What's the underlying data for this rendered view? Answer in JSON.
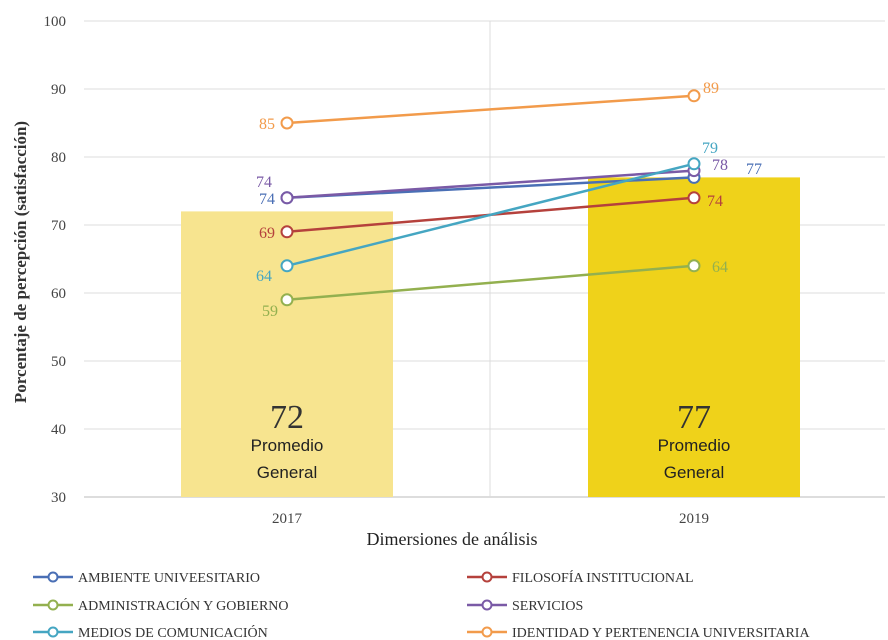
{
  "chart_data": {
    "type": "bar+line",
    "title": "",
    "xlabel": "Dimersiones de análisis",
    "ylabel": "Porcentaje de percepción (satisfacción)",
    "ylim": [
      30,
      100
    ],
    "yticks": [
      "30",
      "40",
      "50",
      "60",
      "70",
      "80",
      "90",
      "100"
    ],
    "categories": [
      "2017",
      "2019"
    ],
    "grid": true,
    "legend_position": "bottom",
    "bars": [
      {
        "category": "2017",
        "value": 72,
        "label": "72",
        "sublabel_1": "Promedio",
        "sublabel_2": "General",
        "color": "#f7e48f"
      },
      {
        "category": "2019",
        "value": 77,
        "label": "77",
        "sublabel_1": "Promedio",
        "sublabel_2": "General",
        "color": "#efd21a"
      }
    ],
    "series": [
      {
        "name": "AMBIENTE UNIVEESITARIO",
        "values": [
          74,
          77
        ],
        "labels": [
          "74",
          "77"
        ],
        "color": "#4a6fb5"
      },
      {
        "name": "FILOSOFÍA INSTITUCIONAL",
        "values": [
          69,
          74
        ],
        "labels": [
          "69",
          "74"
        ],
        "color": "#b5413c"
      },
      {
        "name": "ADMINISTRACIÓN Y GOBIERNO",
        "values": [
          59,
          64
        ],
        "labels": [
          "59",
          "64"
        ],
        "color": "#93b04f"
      },
      {
        "name": "SERVICIOS",
        "values": [
          74,
          78
        ],
        "labels": [
          "74",
          "78"
        ],
        "color": "#7a5aa6"
      },
      {
        "name": "MEDIOS DE COMUNICACIÓN",
        "values": [
          64,
          79
        ],
        "labels": [
          "64",
          "79"
        ],
        "color": "#45a6c2"
      },
      {
        "name": "IDENTIDAD Y PERTENENCIA UNIVERSITARIA",
        "values": [
          85,
          89
        ],
        "labels": [
          "85",
          "89"
        ],
        "color": "#f29b4b"
      }
    ]
  }
}
